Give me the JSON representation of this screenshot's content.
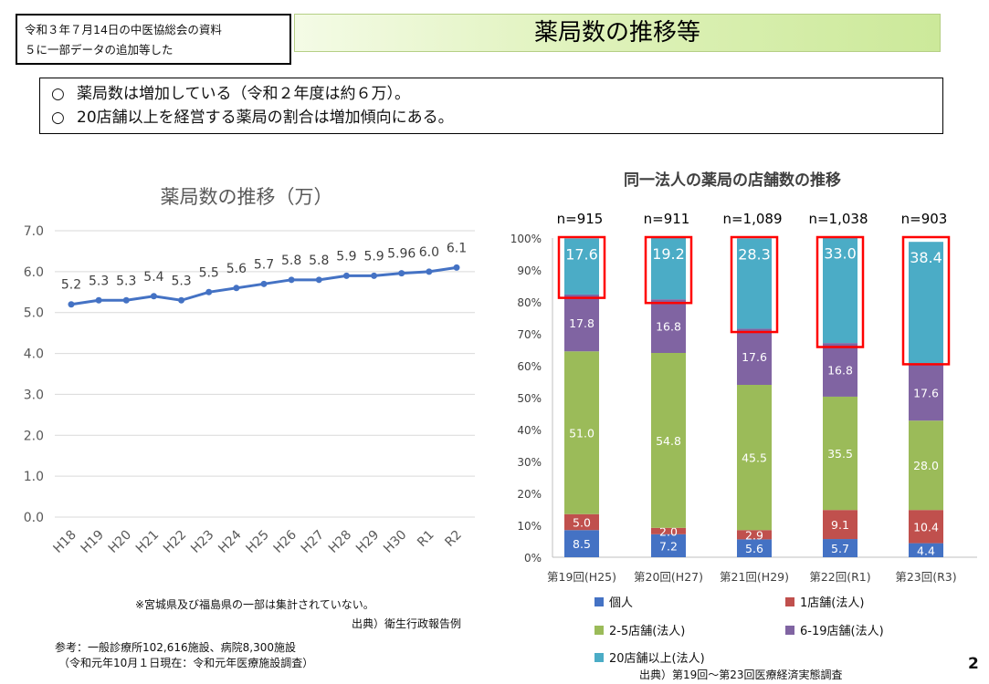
{
  "note": {
    "line1": "令和３年７月14日の中医協総会の資料",
    "line2": "５に一部データの追加等した"
  },
  "title": "薬局数の推移等",
  "summary": {
    "marker": "○",
    "line1": "薬局数は増加している（令和２年度は約６万）。",
    "line2": "20店舗以上を経営する薬局の割合は増加傾向にある。"
  },
  "page_number": "2",
  "footnotes": {
    "exclusion": "※宮城県及び福島県の一部は集計されていない。",
    "source_left": "出典）衛生行政報告例",
    "ref_line1": "参考：一般診療所102,616施設、病院8,300施設",
    "ref_line2": "（令和元年10月１日現在：令和元年医療施設調査）",
    "source_right": "出典）第19回～第23回医療経済実態調査"
  },
  "chart_data": [
    {
      "type": "line",
      "title": "薬局数の推移（万）",
      "categories": [
        "H18",
        "H19",
        "H20",
        "H21",
        "H22",
        "H23",
        "H24",
        "H25",
        "H26",
        "H27",
        "H28",
        "H29",
        "H30",
        "R1",
        "R2"
      ],
      "values": [
        5.2,
        5.3,
        5.3,
        5.4,
        5.3,
        5.5,
        5.6,
        5.7,
        5.8,
        5.8,
        5.9,
        5.9,
        5.96,
        6.0,
        6.1
      ],
      "data_labels": [
        "5.2",
        "5.3",
        "5.3",
        "5.4",
        "5.3",
        "5.5",
        "5.6",
        "5.7",
        "5.8",
        "5.8",
        "5.9",
        "5.9",
        "5.96",
        "6.0",
        "6.1"
      ],
      "ylim": [
        0,
        7
      ],
      "yticks": [
        "0.0",
        "1.0",
        "2.0",
        "3.0",
        "4.0",
        "5.0",
        "6.0",
        "7.0"
      ],
      "grid": true,
      "color": "#4472c4"
    },
    {
      "type": "bar",
      "stacked": true,
      "title": "同一法人の薬局の店舗数の推移",
      "categories": [
        "第19回(H25)",
        "第20回(H27)",
        "第21回(H29)",
        "第22回(R1)",
        "第23回(R3)"
      ],
      "n_labels": [
        "n=915",
        "n=911",
        "n=1,089",
        "n=1,038",
        "n=903"
      ],
      "yticks": [
        "0%",
        "10%",
        "20%",
        "30%",
        "40%",
        "50%",
        "60%",
        "70%",
        "80%",
        "90%",
        "100%"
      ],
      "ylim": [
        0,
        100
      ],
      "series": [
        {
          "name": "個人",
          "color": "#4472c4",
          "values": [
            8.5,
            7.2,
            5.6,
            5.7,
            4.4
          ]
        },
        {
          "name": "1店舗(法人)",
          "color": "#c0504d",
          "values": [
            5.0,
            2.0,
            2.9,
            9.1,
            10.4
          ]
        },
        {
          "name": "2-5店舗(法人)",
          "color": "#9bbb59",
          "values": [
            51.0,
            54.8,
            45.5,
            35.5,
            28.0
          ]
        },
        {
          "name": "6-19店舗(法人)",
          "color": "#8064a2",
          "values": [
            17.8,
            16.8,
            17.6,
            16.8,
            17.6
          ]
        },
        {
          "name": "20店舗以上(法人)",
          "color": "#4bacc6",
          "values": [
            17.6,
            19.2,
            28.3,
            33.0,
            38.4
          ]
        }
      ],
      "highlight_series": "20店舗以上(法人)",
      "highlight_color": "#ff0000"
    }
  ]
}
